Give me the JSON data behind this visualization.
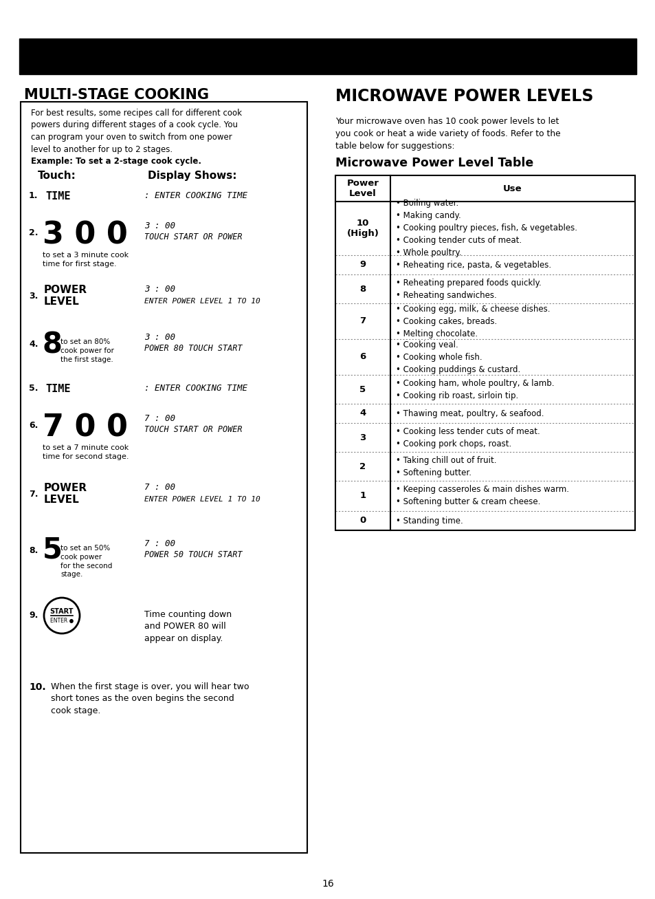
{
  "bg_color": "#ffffff",
  "page_number": "16",
  "left_title": "MULTI-STAGE COOKING",
  "left_box_intro": "For best results, some recipes call for different cook\npowers during different stages of a cook cycle. You\ncan program your oven to switch from one power\nlevel to another for up to 2 stages.",
  "left_example_label": "Example: To set a 2-stage cook cycle.",
  "left_touch_label": "Touch:",
  "left_display_label": "Display Shows:",
  "right_title": "MICROWAVE POWER LEVELS",
  "right_intro": "Your microwave oven has 10 cook power levels to let\nyou cook or heat a wide variety of foods. Refer to the\ntable below for suggestions:",
  "right_table_title": "Microwave Power Level Table",
  "table_rows": [
    [
      "10\n(High)",
      "• Boiling water.\n• Making candy.\n• Cooking poultry pieces, fish, & vegetables.\n• Cooking tender cuts of meat.\n• Whole poultry."
    ],
    [
      "9",
      "• Reheating rice, pasta, & vegetables."
    ],
    [
      "8",
      "• Reheating prepared foods quickly.\n• Reheating sandwiches."
    ],
    [
      "7",
      "• Cooking egg, milk, & cheese dishes.\n• Cooking cakes, breads.\n• Melting chocolate."
    ],
    [
      "6",
      "• Cooking veal.\n• Cooking whole fish.\n• Cooking puddings & custard."
    ],
    [
      "5",
      "• Cooking ham, whole poultry, & lamb.\n• Cooking rib roast, sirloin tip."
    ],
    [
      "4",
      "• Thawing meat, poultry, & seafood."
    ],
    [
      "3",
      "• Cooking less tender cuts of meat.\n• Cooking pork chops, roast."
    ],
    [
      "2",
      "• Taking chill out of fruit.\n• Softening butter."
    ],
    [
      "1",
      "• Keeping casseroles & main dishes warm.\n• Softening butter & cream cheese."
    ],
    [
      "0",
      "• Standing time."
    ]
  ]
}
